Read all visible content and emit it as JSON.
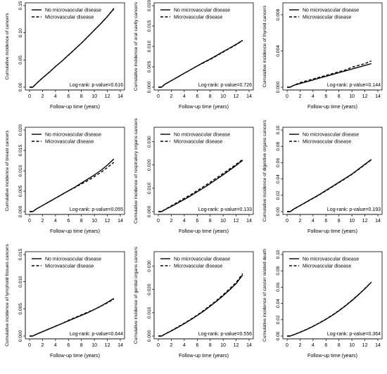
{
  "figure": {
    "legend": {
      "solid": "No microvascular disease",
      "dashed": "Microvascular disease"
    },
    "xlabel": "Follow-up time (years)"
  },
  "chart_data": [
    {
      "type": "line",
      "ylabel": "Cumulative incidence of cancers",
      "xlim": [
        0,
        14
      ],
      "ylim": [
        0,
        0.15
      ],
      "xticks": [
        0,
        2,
        4,
        6,
        8,
        10,
        12,
        14
      ],
      "xtick_labels": [
        "0",
        "2",
        "4",
        "6",
        "8",
        "10",
        "12",
        "14"
      ],
      "yticks": [
        0,
        0.05,
        0.1,
        0.15
      ],
      "ytick_labels": [
        "0.00",
        "0.05",
        "0.10",
        "0.15"
      ],
      "annotation": "Log-rank: p-value=0.616",
      "legend": [
        "No microvascular disease",
        "Microvascular disease"
      ],
      "legend_position": "top-left",
      "series": [
        {
          "name": "No microvascular disease",
          "style": "solid",
          "x": [
            0,
            0.5,
            1,
            2,
            3,
            4,
            5,
            6,
            7,
            8,
            9,
            10,
            11,
            12,
            13
          ],
          "y": [
            0,
            0,
            0.006,
            0.017,
            0.027,
            0.038,
            0.048,
            0.059,
            0.07,
            0.081,
            0.093,
            0.105,
            0.117,
            0.13,
            0.144
          ]
        },
        {
          "name": "Microvascular disease",
          "style": "dashed",
          "x": [
            0,
            0.5,
            1,
            2,
            3,
            4,
            5,
            6,
            7,
            8,
            9,
            10,
            11,
            12,
            13
          ],
          "y": [
            0,
            0,
            0.006,
            0.017,
            0.027,
            0.038,
            0.048,
            0.059,
            0.07,
            0.081,
            0.093,
            0.105,
            0.117,
            0.13,
            0.145
          ]
        }
      ]
    },
    {
      "type": "line",
      "ylabel": "Cumulative incidence of oral cavity cancers",
      "xlim": [
        0,
        14
      ],
      "ylim": [
        0,
        0.02
      ],
      "xticks": [
        0,
        2,
        4,
        6,
        8,
        10,
        12,
        14
      ],
      "xtick_labels": [
        "0",
        "2",
        "4",
        "6",
        "8",
        "10",
        "12",
        "14"
      ],
      "yticks": [
        0,
        0.005,
        0.01,
        0.015,
        0.02
      ],
      "ytick_labels": [
        "0.000",
        "0.005",
        "0.010",
        "0.015",
        "0.020"
      ],
      "annotation": "Log-rank: p-value=0.726",
      "legend": [
        "No microvascular disease",
        "Microvascular disease"
      ],
      "legend_position": "top-left",
      "series": [
        {
          "name": "No microvascular disease",
          "style": "solid",
          "x": [
            0,
            0.5,
            1,
            2,
            3,
            4,
            5,
            6,
            7,
            8,
            9,
            10,
            11,
            12,
            13
          ],
          "y": [
            0,
            0,
            0.0007,
            0.0016,
            0.0025,
            0.0034,
            0.0043,
            0.0052,
            0.0061,
            0.0069,
            0.0078,
            0.0087,
            0.0096,
            0.0105,
            0.0115
          ]
        },
        {
          "name": "Microvascular disease",
          "style": "dashed",
          "x": [
            0,
            0.5,
            1,
            2,
            3,
            4,
            5,
            6,
            7,
            8,
            9,
            10,
            11,
            12,
            13
          ],
          "y": [
            0,
            0,
            0.0007,
            0.0016,
            0.0025,
            0.0034,
            0.0043,
            0.0052,
            0.006,
            0.0068,
            0.0077,
            0.0086,
            0.0095,
            0.0104,
            0.0114
          ]
        }
      ]
    },
    {
      "type": "line",
      "ylabel": "Cumulative incidence of thyroid cancers",
      "xlim": [
        0,
        14
      ],
      "ylim": [
        0,
        0.009
      ],
      "xticks": [
        0,
        2,
        4,
        6,
        8,
        10,
        12,
        14
      ],
      "xtick_labels": [
        "0",
        "2",
        "4",
        "6",
        "8",
        "10",
        "12",
        "14"
      ],
      "yticks": [
        0,
        0.004,
        0.008
      ],
      "ytick_labels": [
        "0.000",
        "0.004",
        "0.008"
      ],
      "annotation": "Log-rank: p-value=0.144",
      "legend": [
        "No microvascular disease",
        "Microvascular disease"
      ],
      "legend_position": "top-left",
      "series": [
        {
          "name": "No microvascular disease",
          "style": "solid",
          "x": [
            0,
            0.5,
            1,
            2,
            3,
            4,
            5,
            6,
            7,
            8,
            9,
            10,
            11,
            12,
            13
          ],
          "y": [
            0,
            0,
            0.0002,
            0.0004,
            0.0006,
            0.0008,
            0.001,
            0.0012,
            0.0014,
            0.0016,
            0.0018,
            0.002,
            0.0022,
            0.0024,
            0.0026
          ]
        },
        {
          "name": "Microvascular disease",
          "style": "dashed",
          "x": [
            0,
            0.5,
            1,
            2,
            3,
            4,
            5,
            6,
            7,
            8,
            9,
            10,
            11,
            12,
            13
          ],
          "y": [
            0,
            0,
            0.0002,
            0.0005,
            0.0007,
            0.0009,
            0.0011,
            0.0013,
            0.0015,
            0.0017,
            0.0019,
            0.0022,
            0.0024,
            0.0026,
            0.0029
          ]
        }
      ]
    },
    {
      "type": "line",
      "ylabel": "Cumulative incidence of breast cancers",
      "xlim": [
        0,
        14
      ],
      "ylim": [
        0,
        0.02
      ],
      "xticks": [
        0,
        2,
        4,
        6,
        8,
        10,
        12,
        14
      ],
      "xtick_labels": [
        "0",
        "2",
        "4",
        "6",
        "8",
        "10",
        "12",
        "14"
      ],
      "yticks": [
        0,
        0.005,
        0.01,
        0.015,
        0.02
      ],
      "ytick_labels": [
        "0.000",
        "0.005",
        "0.010",
        "0.015",
        "0.020"
      ],
      "annotation": "Log-rank: p-value=0.055",
      "legend": [
        "No microvascular disease",
        "Microvascular disease"
      ],
      "legend_position": "top-left",
      "series": [
        {
          "name": "No microvascular disease",
          "style": "solid",
          "x": [
            0,
            0.5,
            1,
            2,
            3,
            4,
            5,
            6,
            7,
            8,
            9,
            10,
            11,
            12,
            13
          ],
          "y": [
            0,
            0,
            0.0006,
            0.0015,
            0.0024,
            0.0033,
            0.0042,
            0.0051,
            0.006,
            0.007,
            0.008,
            0.009,
            0.0101,
            0.0114,
            0.0129
          ]
        },
        {
          "name": "Microvascular disease",
          "style": "dashed",
          "x": [
            0,
            0.5,
            1,
            2,
            3,
            4,
            5,
            6,
            7,
            8,
            9,
            10,
            11,
            12,
            13
          ],
          "y": [
            0,
            0,
            0.0006,
            0.0015,
            0.0024,
            0.0033,
            0.0042,
            0.0051,
            0.0059,
            0.0068,
            0.0076,
            0.0086,
            0.0096,
            0.0108,
            0.0121
          ]
        }
      ]
    },
    {
      "type": "line",
      "ylabel": "Cumulative incidence of respiratory organs cancers",
      "xlim": [
        0,
        14
      ],
      "ylim": [
        0,
        0.035
      ],
      "xticks": [
        0,
        2,
        4,
        6,
        8,
        10,
        12,
        14
      ],
      "xtick_labels": [
        "0",
        "2",
        "4",
        "6",
        "8",
        "10",
        "12",
        "14"
      ],
      "yticks": [
        0,
        0.01,
        0.02,
        0.03
      ],
      "ytick_labels": [
        "0.000",
        "0.010",
        "0.020",
        "0.030"
      ],
      "annotation": "Log-rank: p-value=0.133",
      "legend": [
        "No microvascular disease",
        "Microvascular disease"
      ],
      "legend_position": "top-left",
      "series": [
        {
          "name": "No microvascular disease",
          "style": "solid",
          "x": [
            0,
            0.5,
            1,
            2,
            3,
            4,
            5,
            6,
            7,
            8,
            9,
            10,
            11,
            12,
            13
          ],
          "y": [
            0,
            0,
            0.0008,
            0.0022,
            0.0037,
            0.0052,
            0.0068,
            0.0085,
            0.0102,
            0.012,
            0.0139,
            0.0158,
            0.0178,
            0.0198,
            0.022
          ]
        },
        {
          "name": "Microvascular disease",
          "style": "dashed",
          "x": [
            0,
            0.5,
            1,
            2,
            3,
            4,
            5,
            6,
            7,
            8,
            9,
            10,
            11,
            12,
            13
          ],
          "y": [
            0,
            0,
            0.0009,
            0.0025,
            0.0041,
            0.0057,
            0.0073,
            0.009,
            0.0108,
            0.0126,
            0.0145,
            0.0164,
            0.0183,
            0.0203,
            0.0224
          ]
        }
      ]
    },
    {
      "type": "line",
      "ylabel": "Cumulative incidence of digestive organs cancers",
      "xlim": [
        0,
        14
      ],
      "ylim": [
        0,
        0.1
      ],
      "xticks": [
        0,
        2,
        4,
        6,
        8,
        10,
        12,
        14
      ],
      "xtick_labels": [
        "0",
        "2",
        "4",
        "6",
        "8",
        "10",
        "12",
        "14"
      ],
      "yticks": [
        0,
        0.02,
        0.04,
        0.06,
        0.08,
        0.1
      ],
      "ytick_labels": [
        "0.00",
        "0.02",
        "0.04",
        "0.06",
        "0.08",
        "0.10"
      ],
      "annotation": "Log-rank: p-value=0.193",
      "legend": [
        "No microvascular disease",
        "Microvascular disease"
      ],
      "legend_position": "top-left",
      "series": [
        {
          "name": "No microvascular disease",
          "style": "solid",
          "x": [
            0,
            0.5,
            1,
            2,
            3,
            4,
            5,
            6,
            7,
            8,
            9,
            10,
            11,
            12,
            13
          ],
          "y": [
            0,
            0,
            0.003,
            0.0075,
            0.012,
            0.0165,
            0.021,
            0.026,
            0.031,
            0.036,
            0.041,
            0.046,
            0.052,
            0.058,
            0.064
          ]
        },
        {
          "name": "Microvascular disease",
          "style": "dashed",
          "x": [
            0,
            0.5,
            1,
            2,
            3,
            4,
            5,
            6,
            7,
            8,
            9,
            10,
            11,
            12,
            13
          ],
          "y": [
            0,
            0,
            0.0028,
            0.0072,
            0.0117,
            0.0162,
            0.0207,
            0.0255,
            0.0305,
            0.0355,
            0.0405,
            0.0457,
            0.0515,
            0.0575,
            0.0635
          ]
        }
      ]
    },
    {
      "type": "line",
      "ylabel": "Cumulative incidence of lymphoid tissues cancers",
      "xlim": [
        0,
        14
      ],
      "ylim": [
        0,
        0.015
      ],
      "xticks": [
        0,
        2,
        4,
        6,
        8,
        10,
        12,
        14
      ],
      "xtick_labels": [
        "0",
        "2",
        "4",
        "6",
        "8",
        "10",
        "12",
        "14"
      ],
      "yticks": [
        0,
        0.005,
        0.01,
        0.015
      ],
      "ytick_labels": [
        "0.000",
        "0.005",
        "0.010",
        "0.015"
      ],
      "annotation": "Log-rank: p-value=0.644",
      "legend": [
        "No microvascular disease",
        "Microvascular disease"
      ],
      "legend_position": "top-left",
      "series": [
        {
          "name": "No microvascular disease",
          "style": "solid",
          "x": [
            0,
            0.5,
            1,
            2,
            3,
            4,
            5,
            6,
            7,
            8,
            9,
            10,
            11,
            12,
            13
          ],
          "y": [
            0,
            0,
            0.0003,
            0.0008,
            0.0013,
            0.0018,
            0.0023,
            0.0028,
            0.0033,
            0.0038,
            0.0043,
            0.0049,
            0.0055,
            0.0062,
            0.0069
          ]
        },
        {
          "name": "Microvascular disease",
          "style": "dashed",
          "x": [
            0,
            0.5,
            1,
            2,
            3,
            4,
            5,
            6,
            7,
            8,
            9,
            10,
            11,
            12,
            13
          ],
          "y": [
            0,
            0,
            0.0003,
            0.0008,
            0.0013,
            0.0018,
            0.0023,
            0.0029,
            0.0034,
            0.0039,
            0.0044,
            0.0049,
            0.0055,
            0.0061,
            0.0068
          ]
        }
      ]
    },
    {
      "type": "line",
      "ylabel": "Cumulative incidence of genital organs cancers",
      "xlim": [
        0,
        14
      ],
      "ylim": [
        0,
        0.035
      ],
      "xticks": [
        0,
        2,
        4,
        6,
        8,
        10,
        12,
        14
      ],
      "xtick_labels": [
        "0",
        "2",
        "4",
        "6",
        "8",
        "10",
        "12",
        "14"
      ],
      "yticks": [
        0,
        0.01,
        0.02,
        0.03
      ],
      "ytick_labels": [
        "0.000",
        "0.010",
        "0.020",
        "0.030"
      ],
      "annotation": "Log-rank: p-value=0.556",
      "legend": [
        "No microvascular disease",
        "Microvascular disease"
      ],
      "legend_position": "top-left",
      "series": [
        {
          "name": "No microvascular disease",
          "style": "solid",
          "x": [
            0,
            0.5,
            1,
            2,
            3,
            4,
            5,
            6,
            7,
            8,
            9,
            10,
            11,
            12,
            13
          ],
          "y": [
            0,
            0,
            0.0008,
            0.0022,
            0.0037,
            0.0053,
            0.007,
            0.0088,
            0.0107,
            0.0128,
            0.015,
            0.0173,
            0.0198,
            0.0225,
            0.0262
          ]
        },
        {
          "name": "Microvascular disease",
          "style": "dashed",
          "x": [
            0,
            0.5,
            1,
            2,
            3,
            4,
            5,
            6,
            7,
            8,
            9,
            10,
            11,
            12,
            13
          ],
          "y": [
            0,
            0,
            0.0008,
            0.0023,
            0.0039,
            0.0055,
            0.0072,
            0.009,
            0.011,
            0.0131,
            0.0153,
            0.0177,
            0.0203,
            0.023,
            0.0268
          ]
        }
      ]
    },
    {
      "type": "line",
      "ylabel": "Cumulative incidence of cancer related death",
      "xlim": [
        0,
        14
      ],
      "ylim": [
        0,
        0.1
      ],
      "xticks": [
        0,
        2,
        4,
        6,
        8,
        10,
        12,
        14
      ],
      "xtick_labels": [
        "0",
        "2",
        "4",
        "6",
        "8",
        "10",
        "12",
        "14"
      ],
      "yticks": [
        0,
        0.02,
        0.04,
        0.06,
        0.08,
        0.1
      ],
      "ytick_labels": [
        "0.00",
        "0.02",
        "0.04",
        "0.06",
        "0.08",
        "0.10"
      ],
      "annotation": "Log-rank: p-value=0.364",
      "legend": [
        "No microvascular disease",
        "Microvascular disease"
      ],
      "legend_position": "top-left",
      "series": [
        {
          "name": "No microvascular disease",
          "style": "solid",
          "x": [
            0,
            0.5,
            1,
            2,
            3,
            4,
            5,
            6,
            7,
            8,
            9,
            10,
            11,
            12,
            13
          ],
          "y": [
            0,
            0,
            0.0015,
            0.0045,
            0.008,
            0.0118,
            0.016,
            0.0205,
            0.0255,
            0.031,
            0.037,
            0.0435,
            0.0505,
            0.058,
            0.066
          ]
        },
        {
          "name": "Microvascular disease",
          "style": "dashed",
          "x": [
            0,
            0.5,
            1,
            2,
            3,
            4,
            5,
            6,
            7,
            8,
            9,
            10,
            11,
            12,
            13
          ],
          "y": [
            0,
            0,
            0.0016,
            0.0047,
            0.0082,
            0.012,
            0.0163,
            0.0208,
            0.0258,
            0.0313,
            0.0373,
            0.0438,
            0.0508,
            0.0583,
            0.0663
          ]
        }
      ]
    }
  ]
}
